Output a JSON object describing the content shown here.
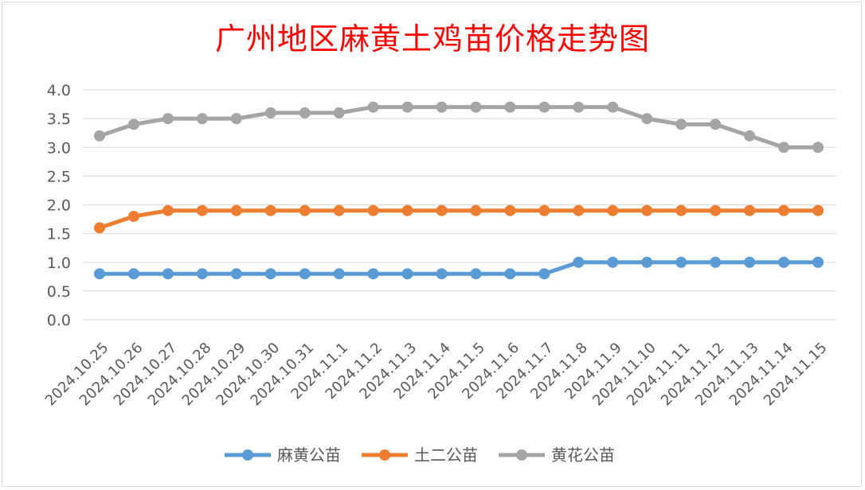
{
  "chart_data": {
    "type": "line",
    "title": "广州地区麻黄土鸡苗价格走势图",
    "xlabel": "",
    "ylabel": "",
    "ylim": [
      0,
      4.0
    ],
    "yticks": [
      "0.0",
      "0.5",
      "1.0",
      "1.5",
      "2.0",
      "2.5",
      "3.0",
      "3.5",
      "4.0"
    ],
    "grid": true,
    "legend_position": "bottom",
    "categories": [
      "2024.10.25",
      "2024.10.26",
      "2024.10.27",
      "2024.10.28",
      "2024.10.29",
      "2024.10.30",
      "2024.10.31",
      "2024.11.1",
      "2024.11.2",
      "2024.11.3",
      "2024.11.4",
      "2024.11.5",
      "2024.11.6",
      "2024.11.7",
      "2024.11.8",
      "2024.11.9",
      "2024.11.10",
      "2024.11.11",
      "2024.11.12",
      "2024.11.13",
      "2024.11.14",
      "2024.11.15"
    ],
    "series": [
      {
        "name": "麻黄公苗",
        "color": "#5b9bd5",
        "values": [
          0.8,
          0.8,
          0.8,
          0.8,
          0.8,
          0.8,
          0.8,
          0.8,
          0.8,
          0.8,
          0.8,
          0.8,
          0.8,
          0.8,
          1.0,
          1.0,
          1.0,
          1.0,
          1.0,
          1.0,
          1.0,
          1.0
        ]
      },
      {
        "name": "土二公苗",
        "color": "#ed7d31",
        "values": [
          1.6,
          1.8,
          1.9,
          1.9,
          1.9,
          1.9,
          1.9,
          1.9,
          1.9,
          1.9,
          1.9,
          1.9,
          1.9,
          1.9,
          1.9,
          1.9,
          1.9,
          1.9,
          1.9,
          1.9,
          1.9,
          1.9
        ]
      },
      {
        "name": "黄花公苗",
        "color": "#a5a5a5",
        "values": [
          3.2,
          3.4,
          3.5,
          3.5,
          3.5,
          3.6,
          3.6,
          3.6,
          3.7,
          3.7,
          3.7,
          3.7,
          3.7,
          3.7,
          3.7,
          3.7,
          3.5,
          3.4,
          3.4,
          3.2,
          3.0,
          3.0
        ]
      }
    ]
  }
}
